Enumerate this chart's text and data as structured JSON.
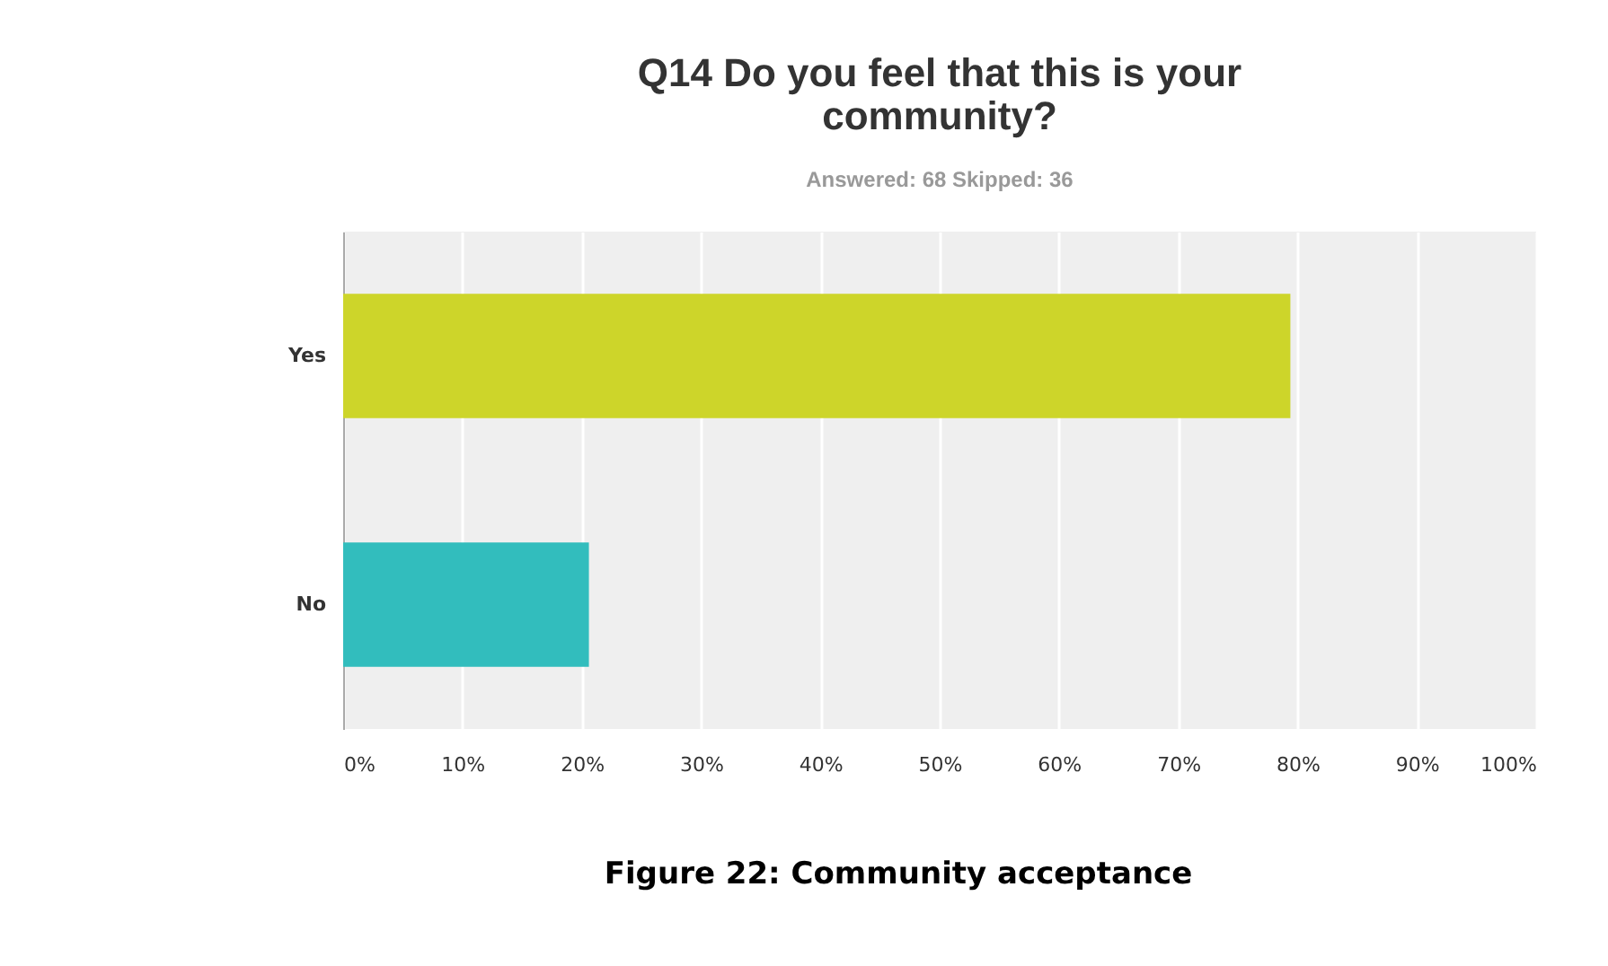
{
  "chart_data": {
    "type": "bar",
    "orientation": "horizontal",
    "title": "Q14 Do you feel that this is your community?",
    "subtitle": "Answered: 68    Skipped: 36",
    "categories": [
      "Yes",
      "No"
    ],
    "values": [
      79.4,
      20.6
    ],
    "colors": [
      "#cdd52a",
      "#32bdbd"
    ],
    "xlim": [
      0,
      100
    ],
    "xticks": [
      {
        "value": 0,
        "label": "0%"
      },
      {
        "value": 10,
        "label": "10%"
      },
      {
        "value": 20,
        "label": "20%"
      },
      {
        "value": 30,
        "label": "30%"
      },
      {
        "value": 40,
        "label": "40%"
      },
      {
        "value": 50,
        "label": "50%"
      },
      {
        "value": 60,
        "label": "60%"
      },
      {
        "value": 70,
        "label": "70%"
      },
      {
        "value": 80,
        "label": "80%"
      },
      {
        "value": 90,
        "label": "90%"
      },
      {
        "value": 100,
        "label": "100%"
      }
    ],
    "grid": "x",
    "annotations": [
      "Figure 22: Community acceptance"
    ]
  }
}
